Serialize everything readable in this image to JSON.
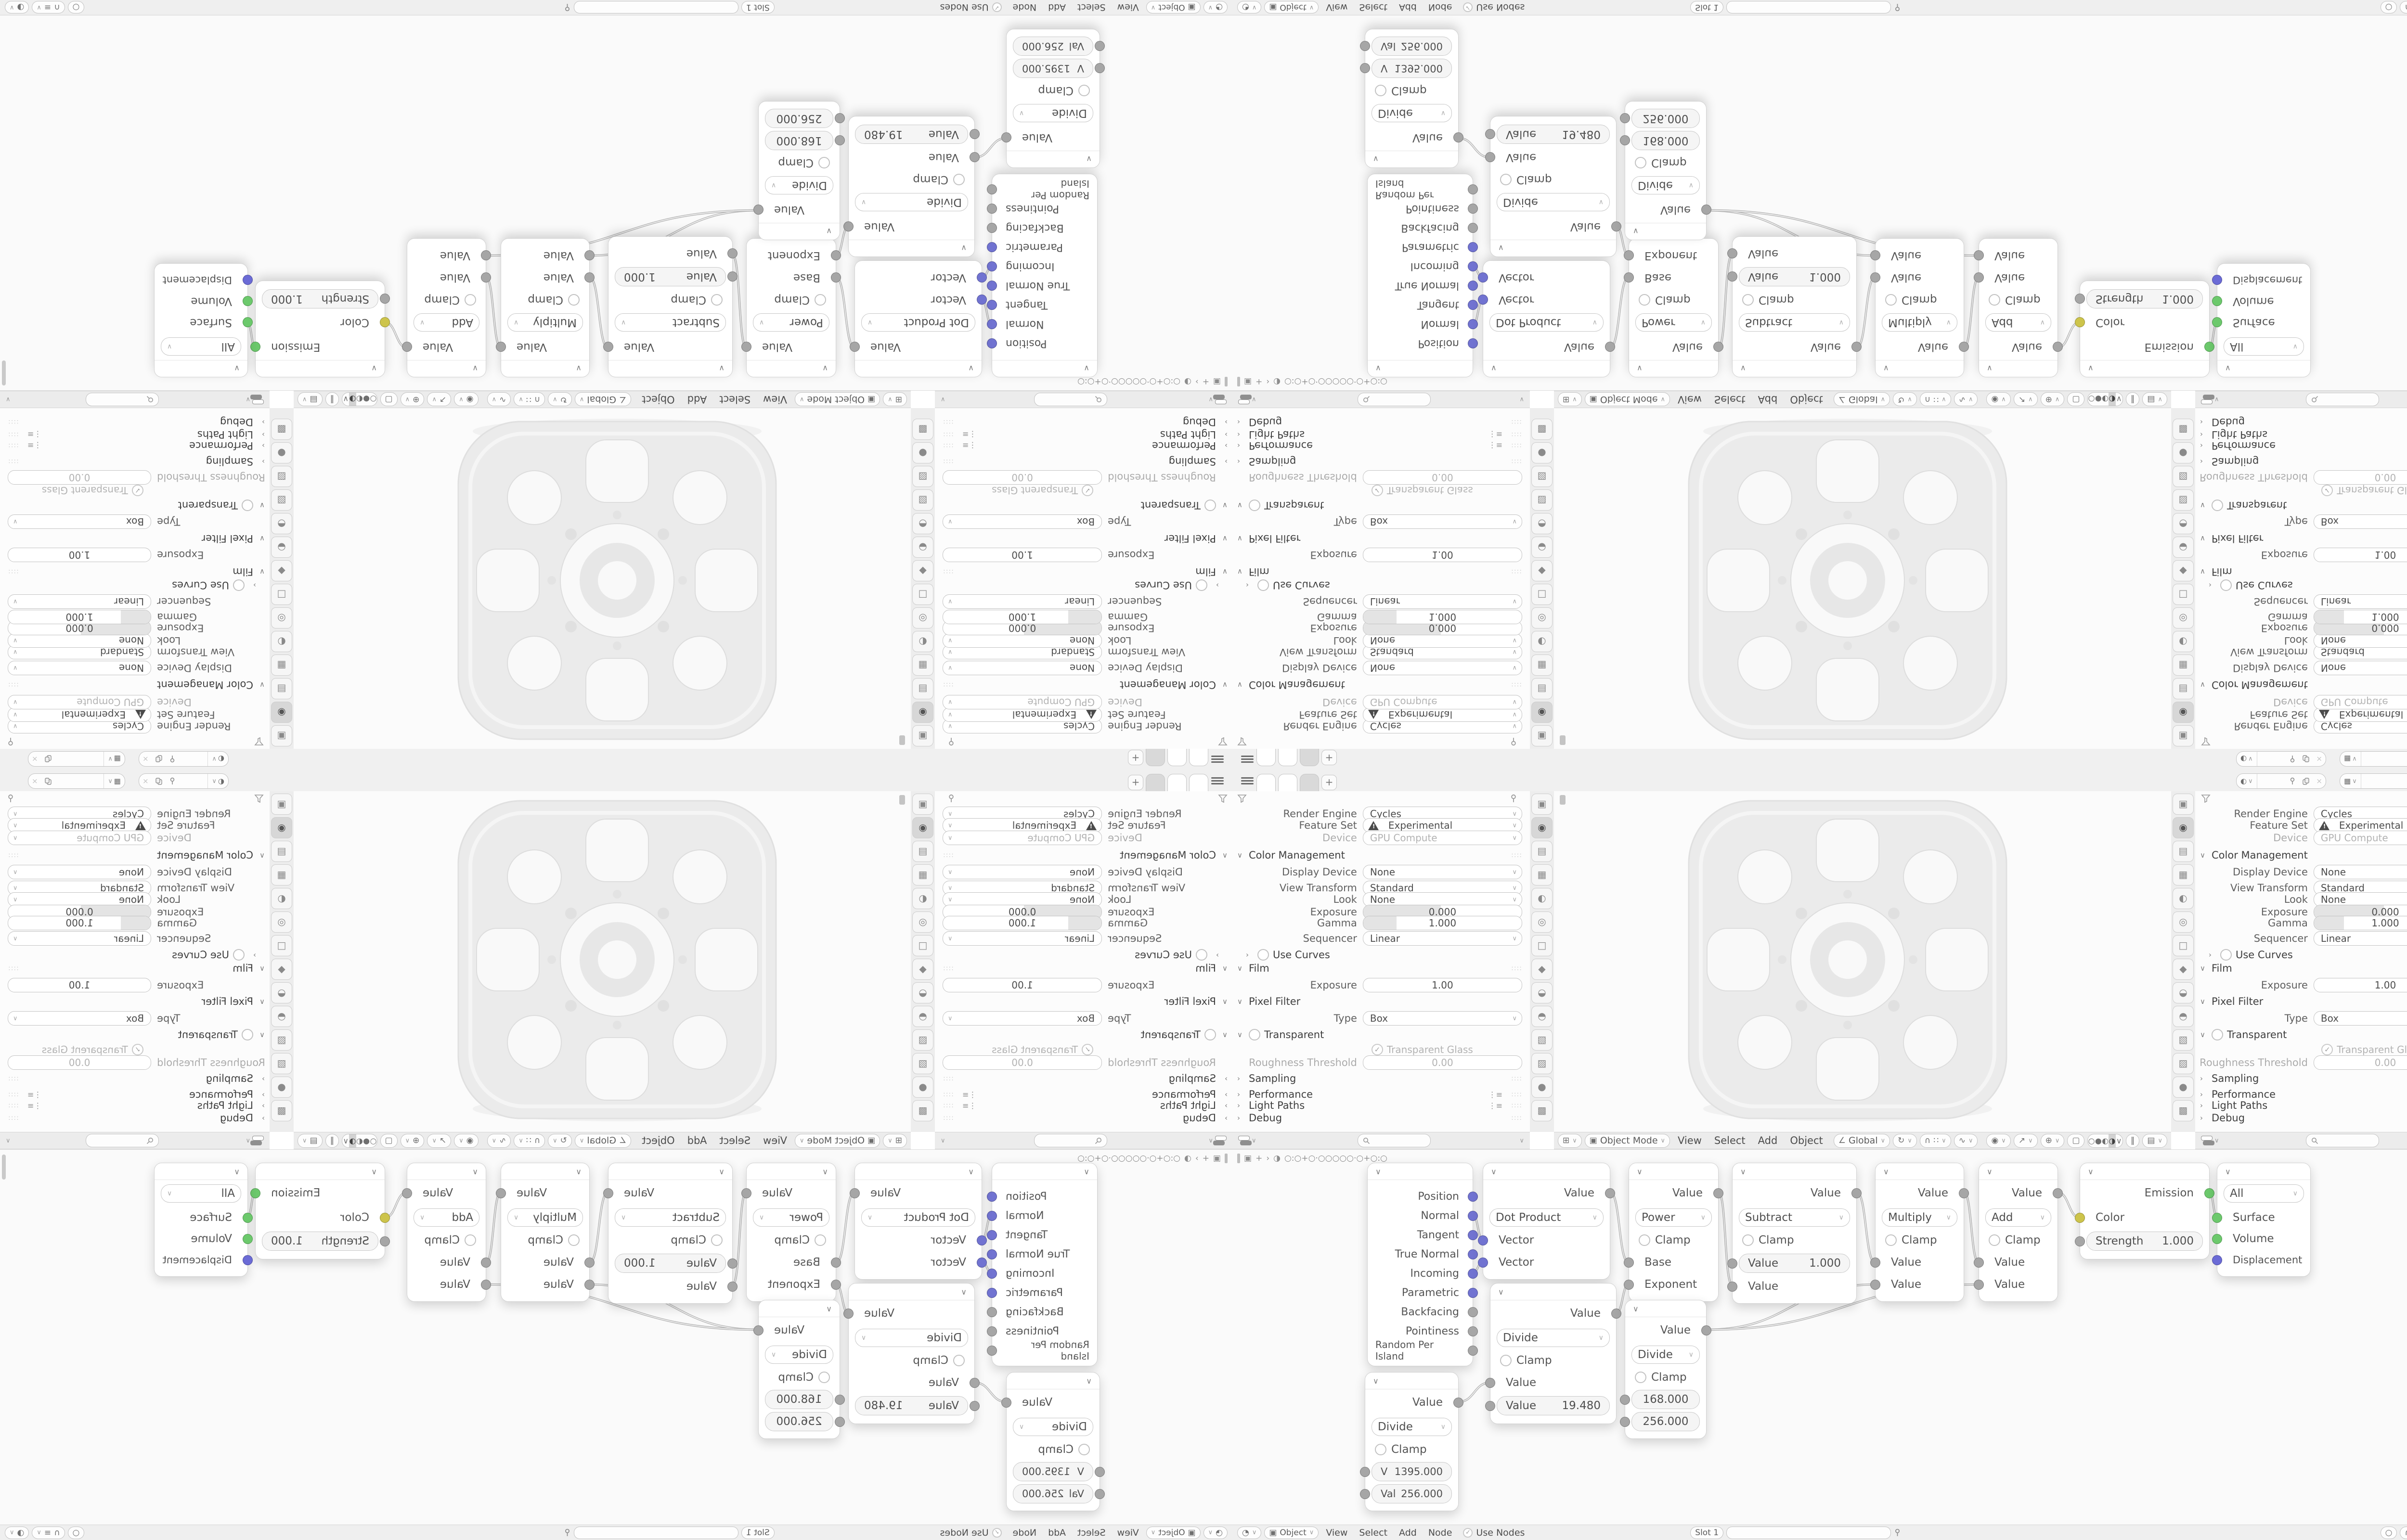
{
  "topbar": {
    "tabs": [
      "",
      "",
      ""
    ],
    "add_tab": "+",
    "scene_field": "",
    "view_layer_field": ""
  },
  "props": {
    "render_engine_label": "Render Engine",
    "render_engine": "Cycles",
    "feature_set_label": "Feature Set",
    "feature_set": "Experimental",
    "device_label": "Device",
    "device": "GPU Compute",
    "color_management": "Color Management",
    "display_device_label": "Display Device",
    "display_device": "None",
    "view_transform_label": "View Transform",
    "view_transform": "Standard",
    "look_label": "Look",
    "look": "None",
    "exposure_label": "Exposure",
    "exposure": "0.000",
    "gamma_label": "Gamma",
    "gamma": "1.000",
    "sequencer_label": "Sequencer",
    "sequencer": "Linear",
    "use_curves": "Use Curves",
    "film": "Film",
    "film_exposure_label": "Exposure",
    "film_exposure": "1.00",
    "pixel_filter": "Pixel Filter",
    "type_label": "Type",
    "type": "Box",
    "transparent": "Transparent",
    "transparent_glass": "Transparent Glass",
    "roughness_threshold_label": "Roughness Threshold",
    "roughness_threshold": "0.00",
    "sampling": "Sampling",
    "performance": "Performance",
    "light_paths": "Light Paths",
    "debug": "Debug"
  },
  "viewport": {
    "mode": "Object Mode",
    "menu_view": "View",
    "menu_select": "Select",
    "menu_add": "Add",
    "menu_object": "Object",
    "orientation": "Global"
  },
  "shader": {
    "object": "Object",
    "menu_view": "View",
    "menu_select": "Select",
    "menu_add": "Add",
    "menu_node": "Node",
    "use_nodes": "Use Nodes",
    "slot": "Slot 1",
    "path_dots": "○:○+○·○○○○○·○+○:○"
  },
  "nodes": {
    "geometry": {
      "outputs": [
        {
          "label": "Position"
        },
        {
          "label": "Normal"
        },
        {
          "label": "Tangent"
        },
        {
          "label": "True Normal"
        },
        {
          "label": "Incoming"
        },
        {
          "label": "Parametric"
        },
        {
          "label": "Backfacing"
        },
        {
          "label": "Pointiness"
        },
        {
          "label": "Random Per Island"
        }
      ]
    },
    "dot_product": {
      "out": "Value",
      "op": "Dot Product",
      "in1": "Vector",
      "in2": "Vector"
    },
    "power": {
      "out": "Value",
      "op": "Power",
      "clamp": "Clamp",
      "in1": "Base",
      "in2": "Exponent"
    },
    "subtract": {
      "out": "Value",
      "op": "Subtract",
      "clamp": "Clamp",
      "field_label": "Value",
      "field_value": "1.000",
      "in2": "Value"
    },
    "multiply": {
      "out": "Value",
      "op": "Multiply",
      "clamp": "Clamp",
      "in1": "Value",
      "in2": "Value"
    },
    "add": {
      "out": "Value",
      "op": "Add",
      "clamp": "Clamp",
      "in1": "Value",
      "in2": "Value"
    },
    "emission": {
      "out": "Emission",
      "in_color": "Color",
      "strength_label": "Strength",
      "strength_value": "1.000"
    },
    "material_output": {
      "target": "All",
      "in_surface": "Surface",
      "in_volume": "Volume",
      "in_displacement": "Displacement"
    },
    "divide_a": {
      "out": "Value",
      "op": "Divide",
      "clamp": "Clamp",
      "in_label": "Value",
      "field_label": "Value",
      "field_value": "19.480"
    },
    "divide_b": {
      "out": "Value",
      "op": "Divide",
      "clamp": "Clamp",
      "value1": "168.000",
      "value2": "256.000"
    },
    "divide_c": {
      "out": "Value",
      "op": "Divide",
      "clamp": "Clamp",
      "value1_label": "V",
      "value1": "1395.000",
      "value2_label": "Val",
      "value2": "256.000"
    }
  },
  "colors": {
    "socket_vector": "#7173d1",
    "socket_value": "#a6a6a6",
    "socket_shader": "#6cc96c",
    "socket_color": "#cdc44b",
    "socket_displacement": "#6b6bd6",
    "noodle": "#b6b6b6",
    "active_tab": "#d7d7d7"
  }
}
